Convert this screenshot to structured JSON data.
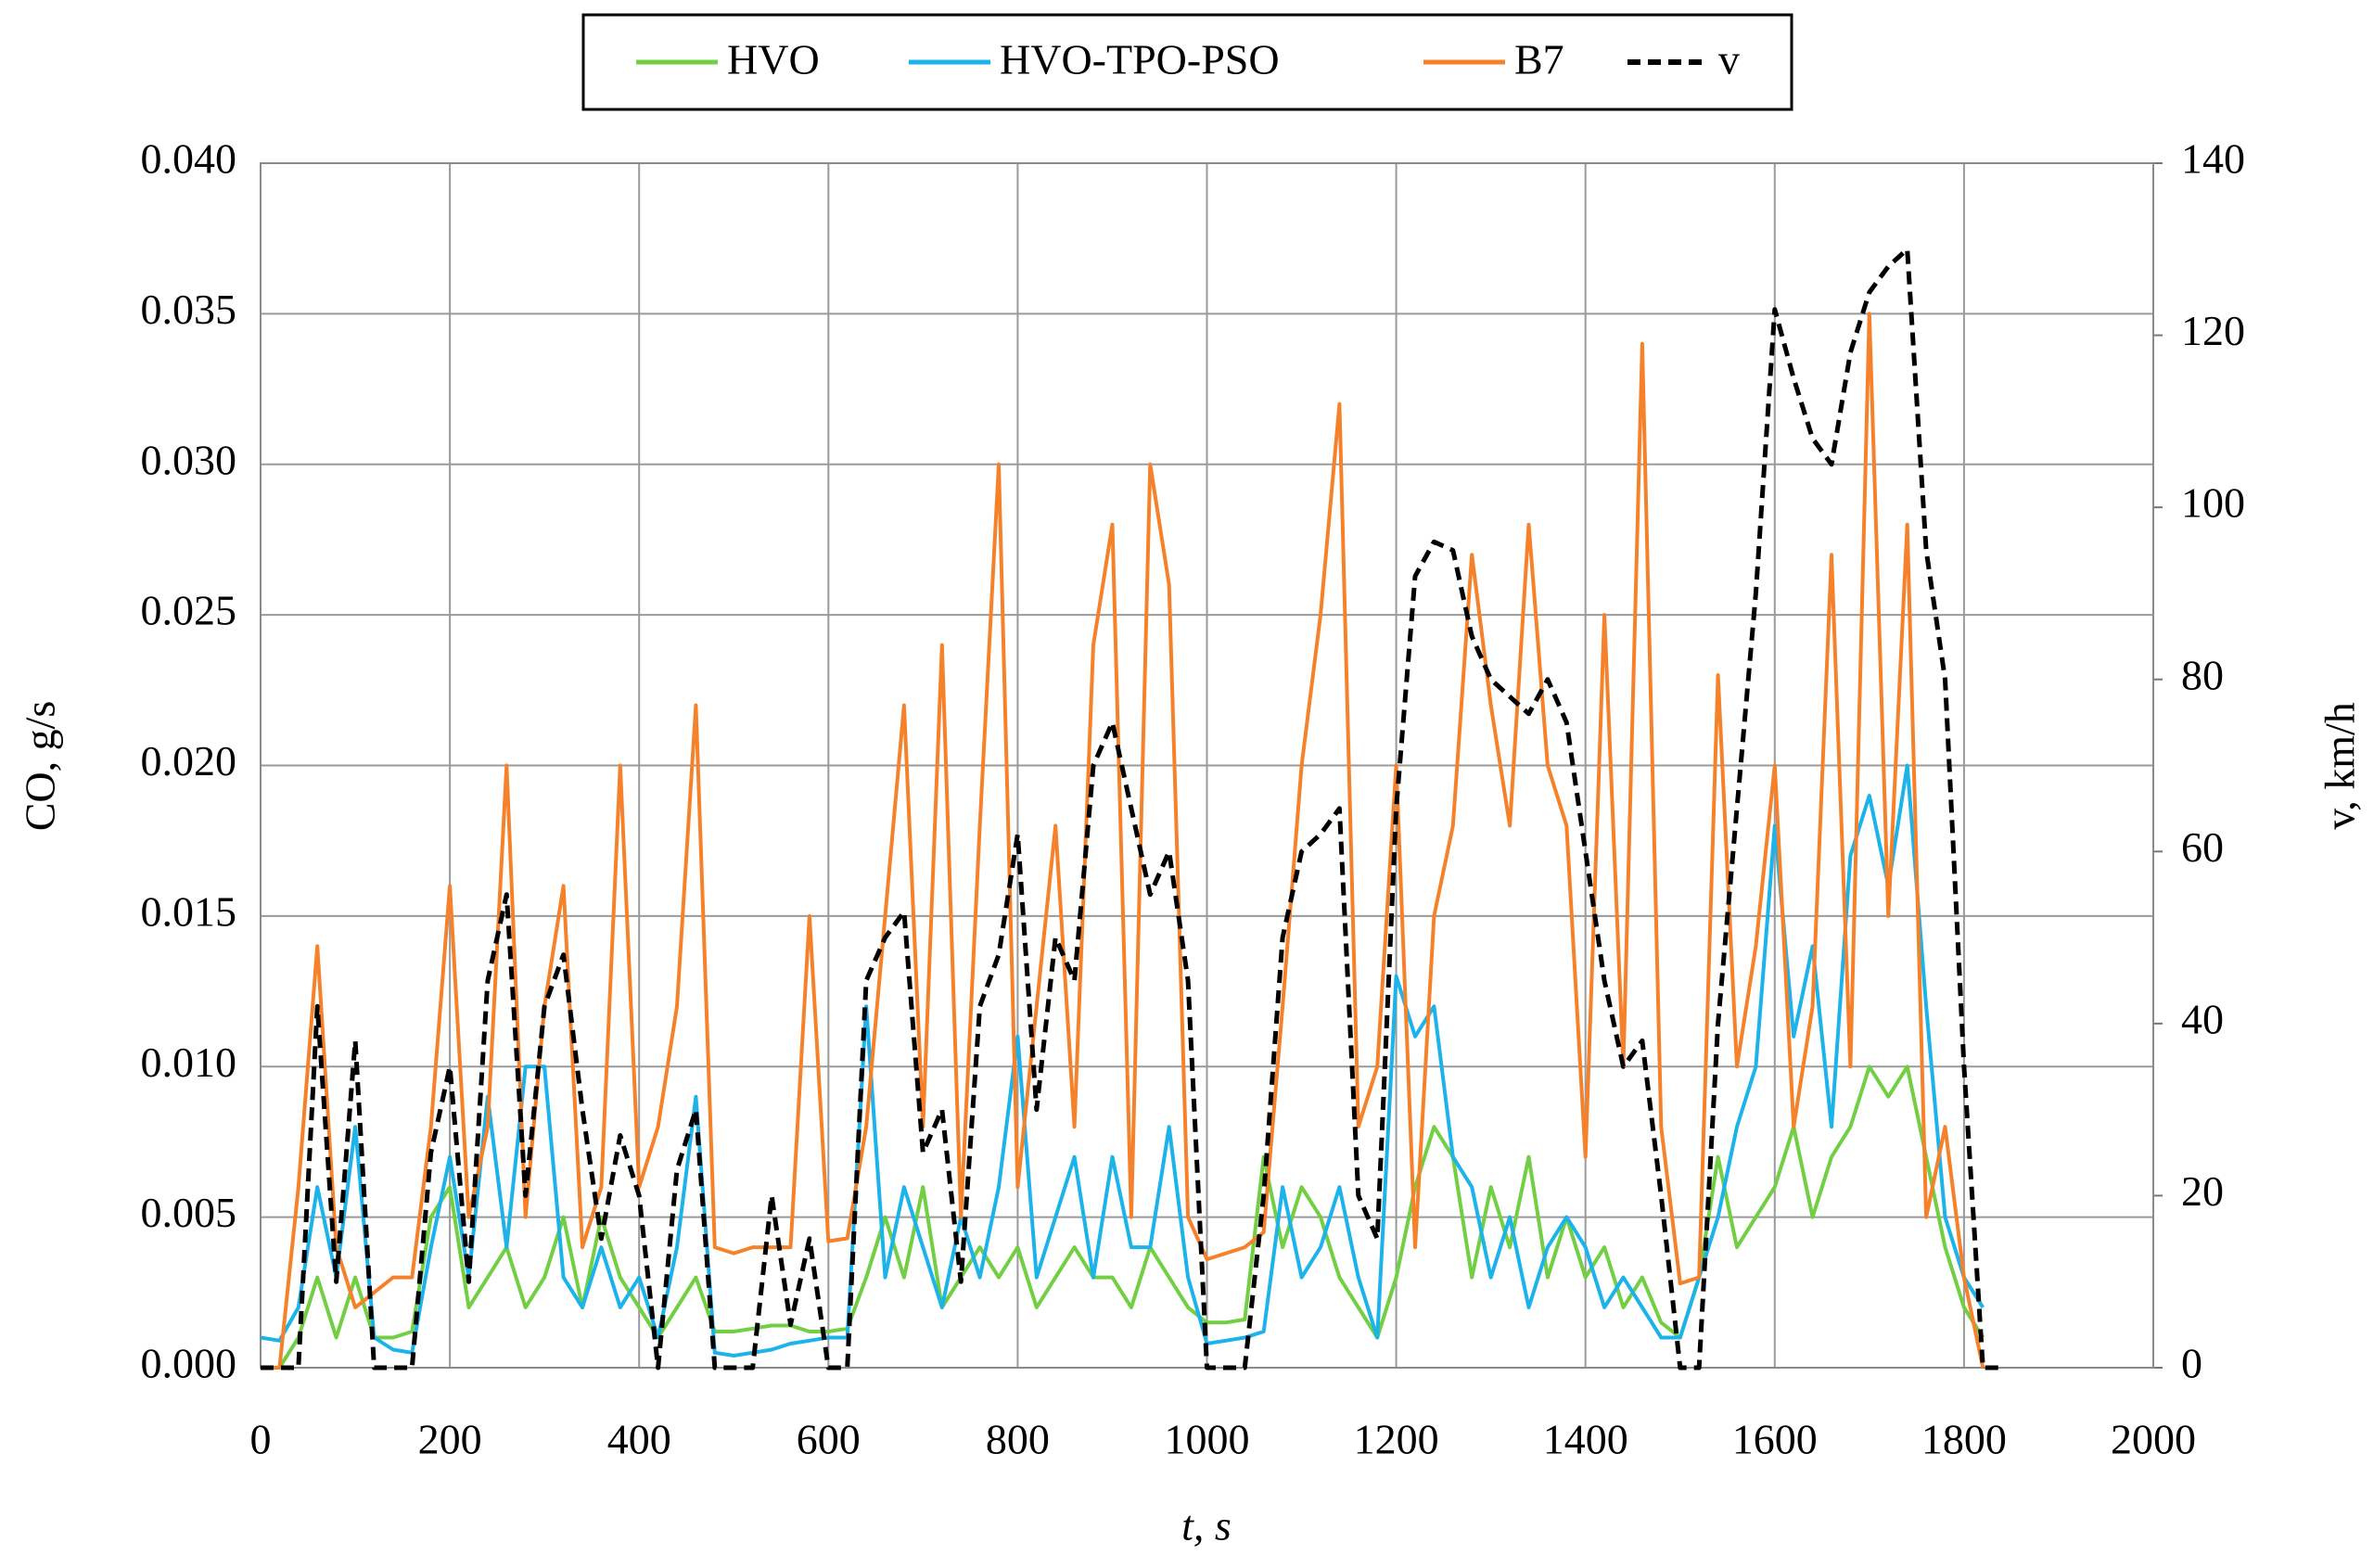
{
  "chart_data": {
    "type": "line",
    "legend": "top",
    "grid": true,
    "xlabel": "t, s",
    "ylabel": "CO, g/s",
    "y2label": "v, km/h",
    "xlim": [
      0,
      2000
    ],
    "xticks": [
      0,
      200,
      400,
      600,
      800,
      1000,
      1200,
      1400,
      1600,
      1800,
      2000
    ],
    "ylim": [
      0,
      0.04
    ],
    "yticks": [
      {
        "value": 0,
        "label": "0.000"
      },
      0.005,
      {
        "value": 0.01,
        "label": "0.010"
      },
      0.015,
      {
        "value": 0.02,
        "label": "0.020"
      },
      0.025,
      {
        "value": 0.03,
        "label": "0.030"
      },
      0.035,
      {
        "value": 0.04,
        "label": "0.040"
      }
    ],
    "y2lim": [
      0,
      140
    ],
    "y2ticks": [
      0,
      20,
      40,
      60,
      80,
      100,
      120,
      140
    ],
    "x": [
      0,
      20,
      40,
      60,
      80,
      100,
      120,
      140,
      160,
      180,
      200,
      220,
      240,
      260,
      280,
      300,
      320,
      340,
      360,
      380,
      400,
      420,
      440,
      460,
      480,
      500,
      520,
      540,
      560,
      580,
      600,
      620,
      640,
      660,
      680,
      700,
      720,
      740,
      760,
      780,
      800,
      820,
      840,
      860,
      880,
      900,
      920,
      940,
      960,
      980,
      1000,
      1020,
      1040,
      1060,
      1080,
      1100,
      1120,
      1140,
      1160,
      1180,
      1200,
      1220,
      1240,
      1260,
      1280,
      1300,
      1320,
      1340,
      1360,
      1380,
      1400,
      1420,
      1440,
      1460,
      1480,
      1500,
      1520,
      1540,
      1560,
      1580,
      1600,
      1620,
      1640,
      1660,
      1680,
      1700,
      1720,
      1740,
      1760,
      1780,
      1800,
      1820,
      1840
    ],
    "series": [
      {
        "name": "HVO",
        "color": "#72cf44",
        "line_style": "solid",
        "values": [
          0,
          0,
          0.001,
          0.003,
          0.001,
          0.003,
          0.001,
          0.001,
          0.0012,
          0.005,
          0.006,
          0.002,
          0.003,
          0.004,
          0.002,
          0.003,
          0.005,
          0.002,
          0.005,
          0.003,
          0.002,
          0.001,
          0.002,
          0.003,
          0.0012,
          0.0012,
          0.0013,
          0.0014,
          0.0014,
          0.0012,
          0.0012,
          0.0013,
          0.003,
          0.005,
          0.003,
          0.006,
          0.002,
          0.003,
          0.004,
          0.003,
          0.004,
          0.002,
          0.003,
          0.004,
          0.003,
          0.003,
          0.002,
          0.004,
          0.003,
          0.002,
          0.0015,
          0.0015,
          0.0016,
          0.007,
          0.004,
          0.006,
          0.005,
          0.003,
          0.002,
          0.001,
          0.003,
          0.006,
          0.008,
          0.007,
          0.003,
          0.006,
          0.004,
          0.007,
          0.003,
          0.005,
          0.003,
          0.004,
          0.002,
          0.003,
          0.0015,
          0.001,
          0.003,
          0.007,
          0.004,
          0.005,
          0.006,
          0.008,
          0.005,
          0.007,
          0.008,
          0.01,
          0.009,
          0.01,
          0.007,
          0.004,
          0.002,
          0.001,
          null
        ]
      },
      {
        "name": "HVO-TPO-PSO",
        "color": "#1cb2ea",
        "line_style": "solid",
        "values": [
          0.001,
          0.0009,
          0.002,
          0.006,
          0.003,
          0.008,
          0.001,
          0.0006,
          0.0005,
          0.004,
          0.007,
          0.003,
          0.009,
          0.004,
          0.01,
          0.01,
          0.003,
          0.002,
          0.004,
          0.002,
          0.003,
          0.001,
          0.004,
          0.009,
          0.0005,
          0.0004,
          0.0005,
          0.0006,
          0.0008,
          0.0009,
          0.001,
          0.001,
          0.012,
          0.003,
          0.006,
          0.004,
          0.002,
          0.005,
          0.003,
          0.006,
          0.011,
          0.003,
          0.005,
          0.007,
          0.003,
          0.007,
          0.004,
          0.004,
          0.008,
          0.003,
          0.0008,
          0.0009,
          0.001,
          0.0012,
          0.006,
          0.003,
          0.004,
          0.006,
          0.003,
          0.001,
          0.013,
          0.011,
          0.012,
          0.007,
          0.006,
          0.003,
          0.005,
          0.002,
          0.004,
          0.005,
          0.004,
          0.002,
          0.003,
          0.002,
          0.001,
          0.001,
          0.003,
          0.005,
          0.008,
          0.01,
          0.018,
          0.011,
          0.014,
          0.008,
          0.017,
          0.019,
          0.016,
          0.02,
          0.012,
          0.005,
          0.003,
          0.002,
          null
        ]
      },
      {
        "name": "B7",
        "color": "#f5822a",
        "line_style": "solid",
        "values": [
          0,
          0,
          0.006,
          0.014,
          0.004,
          0.002,
          0.0025,
          0.003,
          0.003,
          0.008,
          0.016,
          0.005,
          0.008,
          0.02,
          0.005,
          0.012,
          0.016,
          0.004,
          0.006,
          0.02,
          0.006,
          0.008,
          0.012,
          0.022,
          0.004,
          0.0038,
          0.004,
          0.004,
          0.004,
          0.015,
          0.0042,
          0.0043,
          0.008,
          0.015,
          0.022,
          0.008,
          0.024,
          0.005,
          0.018,
          0.03,
          0.006,
          0.012,
          0.018,
          0.008,
          0.024,
          0.028,
          0.005,
          0.03,
          0.026,
          0.005,
          0.0036,
          0.0038,
          0.004,
          0.0045,
          0.012,
          0.02,
          0.025,
          0.032,
          0.008,
          0.01,
          0.02,
          0.004,
          0.015,
          0.018,
          0.027,
          0.022,
          0.018,
          0.028,
          0.02,
          0.018,
          0.007,
          0.025,
          0.01,
          0.034,
          0.008,
          0.0028,
          0.003,
          0.023,
          0.01,
          0.014,
          0.02,
          0.008,
          0.012,
          0.027,
          0.01,
          0.035,
          0.015,
          0.028,
          0.005,
          0.008,
          0.003,
          0,
          null
        ]
      },
      {
        "name": "v",
        "color": "#000000",
        "line_style": "dashed",
        "axis": "y2",
        "values": [
          0,
          0,
          0,
          42,
          10,
          38,
          0,
          0,
          0,
          25,
          35,
          10,
          45,
          55,
          20,
          42,
          48,
          30,
          15,
          27,
          20,
          0,
          23,
          30,
          0,
          0,
          0,
          20,
          5,
          15,
          0,
          0,
          45,
          50,
          53,
          25,
          30,
          10,
          42,
          48,
          62,
          30,
          50,
          45,
          70,
          75,
          65,
          55,
          60,
          45,
          0,
          0,
          0,
          20,
          50,
          60,
          62,
          65,
          20,
          15,
          65,
          92,
          96,
          95,
          85,
          80,
          78,
          76,
          80,
          75,
          60,
          45,
          35,
          38,
          20,
          0,
          0,
          40,
          65,
          90,
          123,
          115,
          108,
          105,
          118,
          125,
          128,
          130,
          95,
          80,
          35,
          0,
          0
        ]
      }
    ]
  }
}
